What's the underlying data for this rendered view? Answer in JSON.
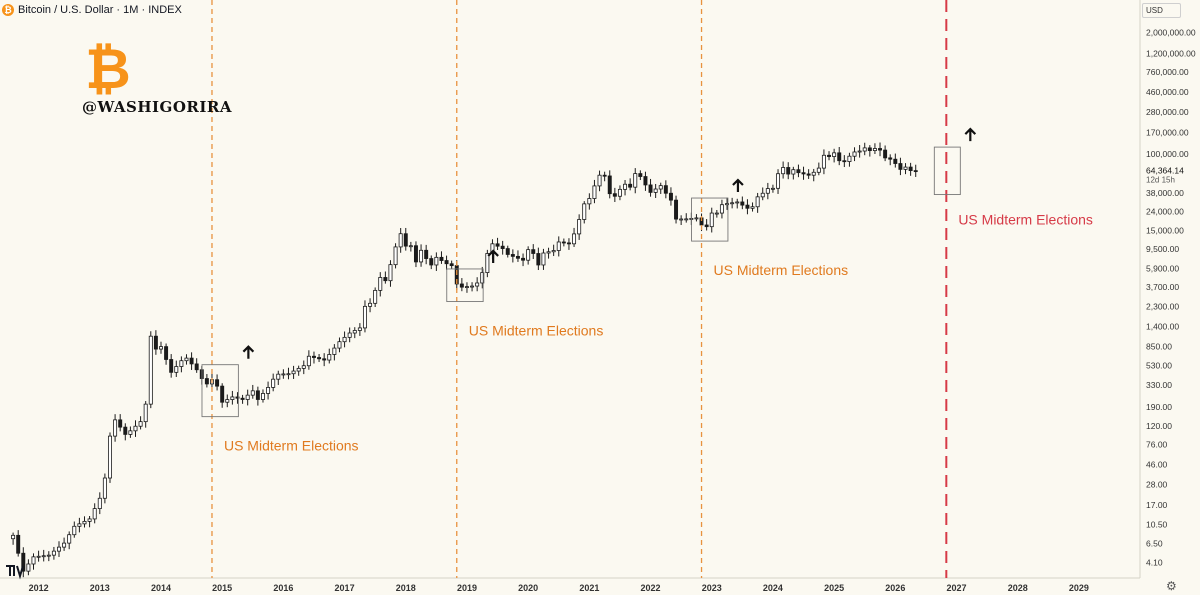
{
  "header": {
    "coin_glyph": "₿",
    "title": "Bitcoin / U.S. Dollar · 1M · INDEX",
    "currency": "USD"
  },
  "watermark": {
    "logo_glyph": "₿",
    "handle": "@WASHIGORIRA",
    "logo_color": "#f7931a"
  },
  "colors": {
    "background": "#fbf9f1",
    "election_line": "#e8923f",
    "election_label": "#e07a1f",
    "future_line": "#d63a47",
    "future_label": "#d63a47"
  },
  "chart_data": {
    "type": "candlestick",
    "title": "Bitcoin / U.S. Dollar · 1M · INDEX",
    "xlabel": "",
    "ylabel": "",
    "scale": "log",
    "ylim": [
      3,
      3500000
    ],
    "xlim": [
      "2011-07",
      "2029-12"
    ],
    "grid": false,
    "x_ticks": [
      "2012",
      "2013",
      "2014",
      "2015",
      "2016",
      "2017",
      "2018",
      "2019",
      "2020",
      "2021",
      "2022",
      "2023",
      "2024",
      "2025",
      "2026",
      "2027",
      "2028",
      "2029"
    ],
    "y_ticks": [
      "2,000,000.00",
      "1,200,000.00",
      "760,000.00",
      "460,000.00",
      "280,000.00",
      "170,000.00",
      "100,000.00",
      "64,364.14",
      "38,000.00",
      "24,000.00",
      "15,000.00",
      "9,500.00",
      "5,900.00",
      "3,700.00",
      "2,300.00",
      "1,400.00",
      "850.00",
      "530.00",
      "330.00",
      "190.00",
      "120.00",
      "76.00",
      "46.00",
      "28.00",
      "17.00",
      "10.50",
      "6.50",
      "4.10"
    ],
    "y_tick_values": [
      2000000,
      1200000,
      760000,
      460000,
      280000,
      170000,
      100000,
      64364.14,
      38000,
      24000,
      15000,
      9500,
      5900,
      3700,
      2300,
      1400,
      850,
      530,
      330,
      190,
      120,
      76,
      46,
      28,
      17,
      10.5,
      6.5,
      4.1
    ],
    "current_price": 64364.14,
    "current_price_label": "64,364.14",
    "countdown": "12d 15h",
    "close_anchors": [
      [
        "2011-08",
        8
      ],
      [
        "2011-10",
        3.3
      ],
      [
        "2011-12",
        4.7
      ],
      [
        "2012-03",
        4.9
      ],
      [
        "2012-06",
        6.6
      ],
      [
        "2012-08",
        10
      ],
      [
        "2012-11",
        12
      ],
      [
        "2013-01",
        20
      ],
      [
        "2013-02",
        33
      ],
      [
        "2013-03",
        93
      ],
      [
        "2013-04",
        139
      ],
      [
        "2013-06",
        97
      ],
      [
        "2013-07",
        106
      ],
      [
        "2013-09",
        133
      ],
      [
        "2013-10",
        205
      ],
      [
        "2013-11",
        1100
      ],
      [
        "2013-12",
        800
      ],
      [
        "2014-01",
        850
      ],
      [
        "2014-03",
        450
      ],
      [
        "2014-05",
        600
      ],
      [
        "2014-06",
        640
      ],
      [
        "2014-08",
        480
      ],
      [
        "2014-09",
        386
      ],
      [
        "2014-10",
        338
      ],
      [
        "2014-11",
        375
      ],
      [
        "2014-12",
        320
      ],
      [
        "2015-01",
        215
      ],
      [
        "2015-03",
        245
      ],
      [
        "2015-05",
        230
      ],
      [
        "2015-07",
        285
      ],
      [
        "2015-08",
        230
      ],
      [
        "2015-10",
        310
      ],
      [
        "2015-11",
        380
      ],
      [
        "2015-12",
        430
      ],
      [
        "2016-02",
        435
      ],
      [
        "2016-05",
        530
      ],
      [
        "2016-06",
        670
      ],
      [
        "2016-09",
        610
      ],
      [
        "2016-10",
        700
      ],
      [
        "2016-12",
        960
      ],
      [
        "2017-02",
        1190
      ],
      [
        "2017-04",
        1350
      ],
      [
        "2017-05",
        2300
      ],
      [
        "2017-06",
        2480
      ],
      [
        "2017-08",
        4700
      ],
      [
        "2017-09",
        4340
      ],
      [
        "2017-10",
        6450
      ],
      [
        "2017-11",
        10000
      ],
      [
        "2017-12",
        13860
      ],
      [
        "2018-01",
        10200
      ],
      [
        "2018-02",
        10300
      ],
      [
        "2018-03",
        6900
      ],
      [
        "2018-04",
        9200
      ],
      [
        "2018-05",
        7500
      ],
      [
        "2018-06",
        6400
      ],
      [
        "2018-07",
        7730
      ],
      [
        "2018-09",
        6600
      ],
      [
        "2018-10",
        6300
      ],
      [
        "2018-11",
        4000
      ],
      [
        "2018-12",
        3700
      ],
      [
        "2019-02",
        3800
      ],
      [
        "2019-03",
        4100
      ],
      [
        "2019-04",
        5300
      ],
      [
        "2019-05",
        8500
      ],
      [
        "2019-06",
        10800
      ],
      [
        "2019-08",
        9600
      ],
      [
        "2019-09",
        8300
      ],
      [
        "2019-11",
        7550
      ],
      [
        "2019-12",
        7200
      ],
      [
        "2020-01",
        9350
      ],
      [
        "2020-02",
        8500
      ],
      [
        "2020-03",
        6400
      ],
      [
        "2020-04",
        8600
      ],
      [
        "2020-06",
        9150
      ],
      [
        "2020-07",
        11300
      ],
      [
        "2020-09",
        10800
      ],
      [
        "2020-10",
        13800
      ],
      [
        "2020-11",
        19700
      ],
      [
        "2020-12",
        29000
      ],
      [
        "2021-01",
        33100
      ],
      [
        "2021-02",
        45200
      ],
      [
        "2021-03",
        58900
      ],
      [
        "2021-04",
        57800
      ],
      [
        "2021-05",
        37300
      ],
      [
        "2021-06",
        35000
      ],
      [
        "2021-07",
        41500
      ],
      [
        "2021-08",
        47100
      ],
      [
        "2021-09",
        43800
      ],
      [
        "2021-10",
        61300
      ],
      [
        "2021-11",
        57000
      ],
      [
        "2021-12",
        46300
      ],
      [
        "2022-01",
        38500
      ],
      [
        "2022-03",
        45500
      ],
      [
        "2022-04",
        37700
      ],
      [
        "2022-05",
        31800
      ],
      [
        "2022-06",
        19900
      ],
      [
        "2022-08",
        20000
      ],
      [
        "2022-10",
        20500
      ],
      [
        "2022-11",
        17200
      ],
      [
        "2022-12",
        16500
      ],
      [
        "2023-01",
        23100
      ],
      [
        "2023-02",
        23100
      ],
      [
        "2023-03",
        28400
      ],
      [
        "2023-04",
        29200
      ],
      [
        "2023-06",
        30400
      ],
      [
        "2023-08",
        26000
      ],
      [
        "2023-09",
        27000
      ],
      [
        "2023-10",
        34500
      ],
      [
        "2023-11",
        37700
      ],
      [
        "2023-12",
        42300
      ],
      [
        "2024-01",
        42600
      ],
      [
        "2024-02",
        61100
      ],
      [
        "2024-03",
        71300
      ],
      [
        "2024-04",
        60600
      ],
      [
        "2024-05",
        67500
      ],
      [
        "2024-06",
        62700
      ],
      [
        "2024-08",
        58900
      ],
      [
        "2024-09",
        63300
      ],
      [
        "2024-10",
        70200
      ],
      [
        "2024-11",
        96400
      ],
      [
        "2024-12",
        93400
      ],
      [
        "2025-01",
        102400
      ],
      [
        "2025-02",
        84300
      ],
      [
        "2025-03",
        82500
      ],
      [
        "2025-04",
        94200
      ],
      [
        "2025-05",
        104600
      ],
      [
        "2025-06",
        107100
      ],
      [
        "2025-07",
        115700
      ],
      [
        "2025-08",
        108200
      ],
      [
        "2025-09",
        114000
      ],
      [
        "2025-10",
        109600
      ],
      [
        "2025-11",
        90400
      ],
      [
        "2025-12",
        87500
      ],
      [
        "2026-01",
        78600
      ],
      [
        "2026-02",
        68000
      ],
      [
        "2026-03",
        72000
      ],
      [
        "2026-04",
        66000
      ],
      [
        "2026-05",
        64364.14
      ]
    ],
    "election_months": [
      "2014-11",
      "2018-11",
      "2022-11"
    ],
    "election_label": "US Midterm Elections",
    "future_election_month": "2026-11",
    "future_election_label": "US Midterm Elections"
  }
}
